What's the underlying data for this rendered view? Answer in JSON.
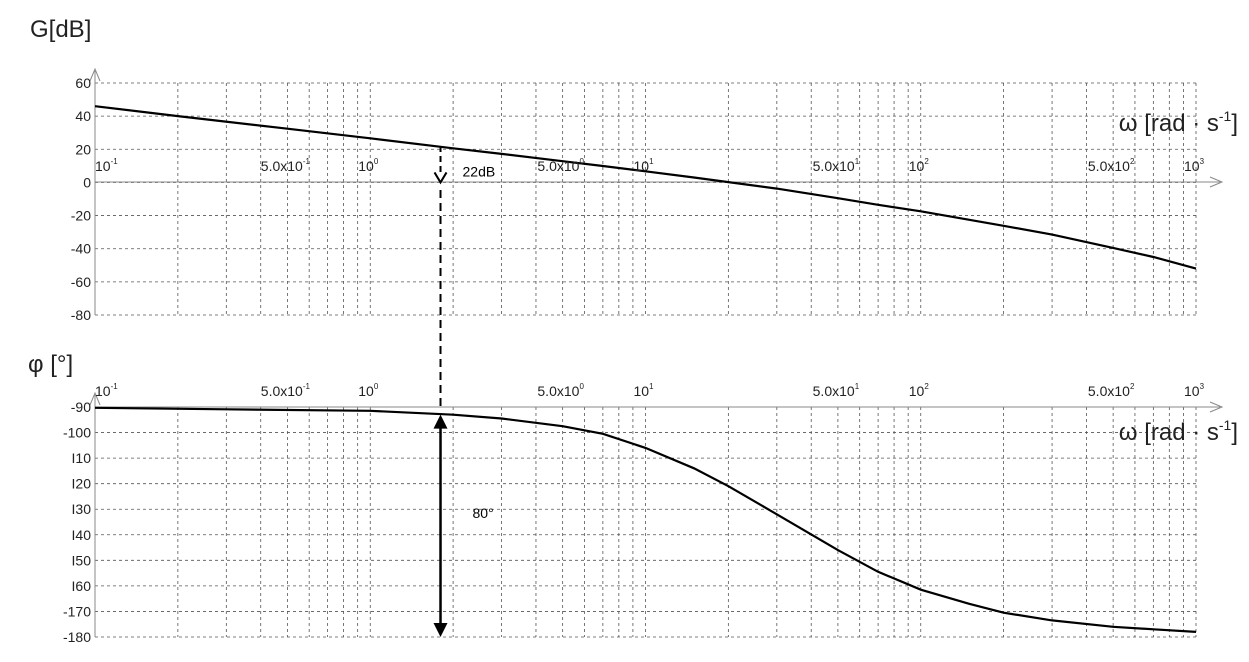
{
  "chart_data": [
    {
      "type": "line",
      "panel": "magnitude",
      "ylabel": "G[dB]",
      "xlabel": {
        "main": "ω [rad · s",
        "sup": "-1",
        "close": "]"
      },
      "x_scale": "log",
      "xlim": [
        0.1,
        1000
      ],
      "ylim": [
        -80,
        60
      ],
      "y_ticks": [
        "60",
        "40",
        "20",
        "0",
        "-20",
        "-40",
        "-60",
        "-80"
      ],
      "x_ticks": [
        {
          "value": 0.1,
          "base": "10",
          "exp": "-1"
        },
        {
          "value": 0.5,
          "base": "5.0x10",
          "exp": "-1"
        },
        {
          "value": 1,
          "base": "10",
          "exp": "0"
        },
        {
          "value": 5,
          "base": "5.0x10",
          "exp": "0"
        },
        {
          "value": 10,
          "base": "10",
          "exp": "1"
        },
        {
          "value": 50,
          "base": "5.0x10",
          "exp": "1"
        },
        {
          "value": 100,
          "base": "10",
          "exp": "2"
        },
        {
          "value": 500,
          "base": "5.0x10",
          "exp": "2"
        },
        {
          "value": 1000,
          "base": "10",
          "exp": "3"
        }
      ],
      "grid": true,
      "series": [
        {
          "x": [
            0.1,
            0.2,
            0.5,
            1,
            2,
            3,
            5,
            7,
            10,
            15,
            20,
            30,
            50,
            70,
            100,
            200,
            300,
            500,
            700,
            1000
          ],
          "y": [
            46,
            40,
            32.4,
            26.6,
            20.6,
            17.2,
            12.8,
            9.9,
            6.7,
            3.0,
            0.2,
            -3.7,
            -9.5,
            -13.5,
            -17.4,
            -26.2,
            -31.5,
            -39.5,
            -45.0,
            -52.0
          ]
        }
      ],
      "annotations": [
        {
          "text": "22dB",
          "x": 1.8,
          "y_from": 22,
          "y_to": 0
        }
      ]
    },
    {
      "type": "line",
      "panel": "phase",
      "ylabel": "φ [°]",
      "xlabel": {
        "main": "ω [rad · s",
        "sup": "-1",
        "close": "]"
      },
      "x_scale": "log",
      "xlim": [
        0.1,
        1000
      ],
      "ylim": [
        -180,
        -90
      ],
      "y_ticks": [
        "-90",
        "-100",
        "I10",
        "I20",
        "I30",
        "I40",
        "I50",
        "I60",
        "-170",
        "-180"
      ],
      "x_ticks": [
        {
          "value": 0.1,
          "base": "10",
          "exp": "-1"
        },
        {
          "value": 0.5,
          "base": "5.0x10",
          "exp": "-1"
        },
        {
          "value": 1,
          "base": "10",
          "exp": "0"
        },
        {
          "value": 5,
          "base": "5.0x10",
          "exp": "0"
        },
        {
          "value": 10,
          "base": "10",
          "exp": "1"
        },
        {
          "value": 50,
          "base": "5.0x10",
          "exp": "1"
        },
        {
          "value": 100,
          "base": "10",
          "exp": "2"
        },
        {
          "value": 500,
          "base": "5.0x10",
          "exp": "2"
        },
        {
          "value": 1000,
          "base": "10",
          "exp": "3"
        }
      ],
      "grid": true,
      "series": [
        {
          "x": [
            0.1,
            0.3,
            1,
            2,
            3,
            5,
            7,
            10,
            15,
            20,
            30,
            50,
            70,
            100,
            150,
            200,
            300,
            500,
            700,
            1000
          ],
          "y": [
            -90.3,
            -90.9,
            -91.5,
            -93,
            -94.5,
            -97.5,
            -100.5,
            -106,
            -114,
            -121,
            -132,
            -146,
            -154.5,
            -161.5,
            -167,
            -170.5,
            -173.5,
            -176,
            -177,
            -178
          ]
        }
      ],
      "annotations": [
        {
          "text": "80°",
          "x": 1.8,
          "y_from": -93,
          "y_to": -180
        }
      ]
    }
  ]
}
